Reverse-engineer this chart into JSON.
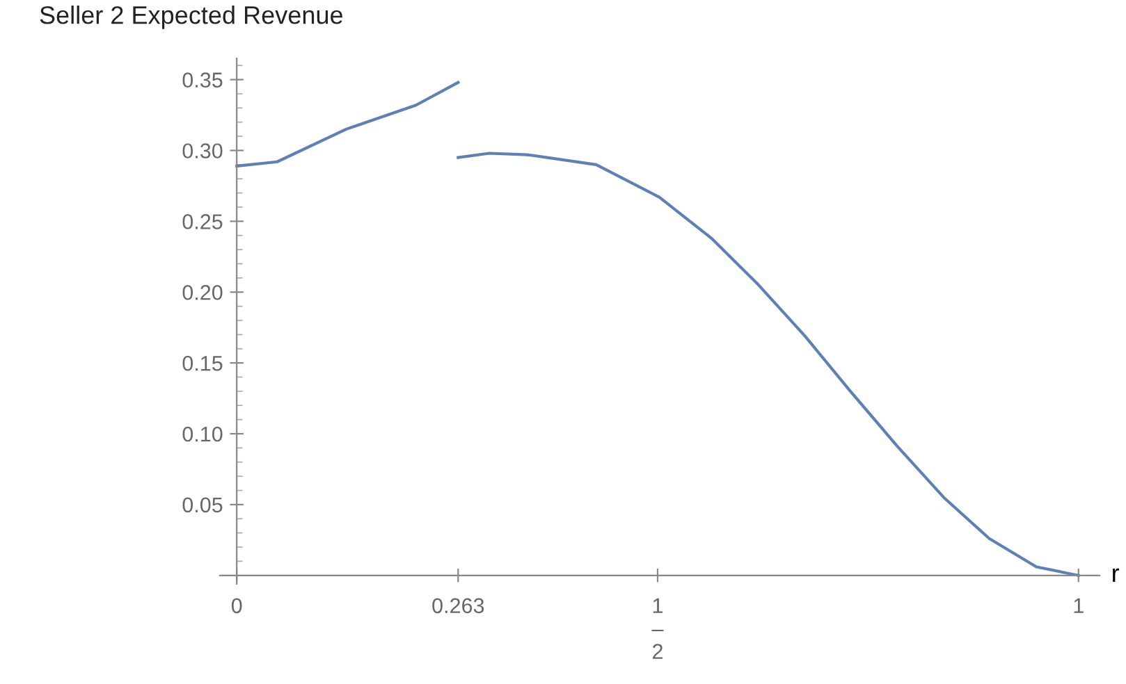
{
  "chart_data": {
    "type": "line",
    "title": "Seller 2 Expected Revenue",
    "xlabel": "r",
    "series": [
      {
        "color": "#5e81b5",
        "x": [
          0,
          0.048,
          0.13,
          0.213,
          0.263
        ],
        "values": [
          0.289,
          0.292,
          0.315,
          0.332,
          0.348
        ]
      },
      {
        "color": "#5e81b5",
        "x": [
          0.263,
          0.3,
          0.345,
          0.427,
          0.502,
          0.564,
          0.62,
          0.675,
          0.729,
          0.785,
          0.84,
          0.894,
          0.95,
          1.0
        ],
        "values": [
          0.295,
          0.298,
          0.297,
          0.29,
          0.267,
          0.238,
          0.205,
          0.169,
          0.13,
          0.091,
          0.055,
          0.026,
          0.006,
          0.0
        ]
      }
    ],
    "xlim": [
      -0.02,
      1.025
    ],
    "ylim": [
      -0.006,
      0.365
    ],
    "xticks": [
      0,
      0.263,
      {
        "value": 0.5,
        "label": "1\n–\n2"
      },
      1
    ],
    "yticks": [
      0.05,
      {
        "value": 0.1,
        "label": "0.10"
      },
      0.15,
      {
        "value": 0.2,
        "label": "0.20"
      },
      0.25,
      {
        "value": 0.3,
        "label": "0.30"
      },
      0.35
    ],
    "grid": false,
    "legend": false,
    "marker": "none",
    "line_style": "solid"
  }
}
